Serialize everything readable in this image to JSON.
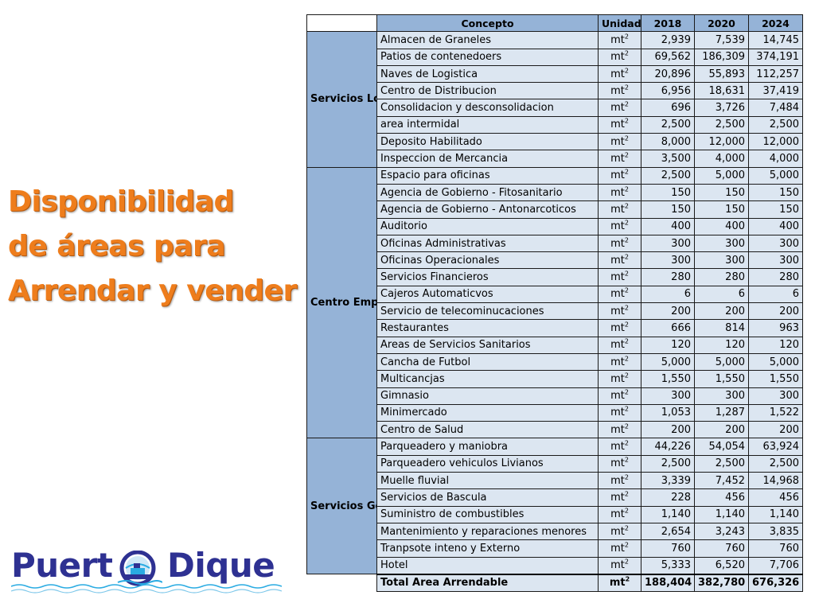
{
  "headline": {
    "line1": "Disponibilidad",
    "line2": "de áreas para",
    "line3": "Arrendar y vender"
  },
  "logo": {
    "word1": "Puert",
    "word2": "Dique",
    "badge_icon": "ship-globe-icon",
    "colors": {
      "text": "#2e3192",
      "accent": "#29abe2"
    }
  },
  "colors": {
    "headline": "#ee7d1c",
    "header_fill": "#95b3d7",
    "cell_fill": "#dce6f1"
  },
  "table": {
    "headers": [
      "",
      "Concepto",
      "Unidad",
      "2018",
      "2020",
      "2024"
    ],
    "unit": "mt",
    "unit_exp": "2",
    "groups": [
      {
        "label": "Servicios Logisticos",
        "rows": [
          {
            "concept": "Almacen de Graneles",
            "y2018": "2,939",
            "y2020": "7,539",
            "y2024": "14,745"
          },
          {
            "concept": "Patios de contenedoers",
            "y2018": "69,562",
            "y2020": "186,309",
            "y2024": "374,191"
          },
          {
            "concept": "Naves de Logistica",
            "y2018": "20,896",
            "y2020": "55,893",
            "y2024": "112,257"
          },
          {
            "concept": "Centro de Distribucion",
            "y2018": "6,956",
            "y2020": "18,631",
            "y2024": "37,419"
          },
          {
            "concept": "Consolidacion y desconsolidacion",
            "y2018": "696",
            "y2020": "3,726",
            "y2024": "7,484"
          },
          {
            "concept": "area intermidal",
            "y2018": "2,500",
            "y2020": "2,500",
            "y2024": "2,500"
          },
          {
            "concept": "Deposito Habilitado",
            "y2018": "8,000",
            "y2020": "12,000",
            "y2024": "12,000"
          },
          {
            "concept": "Inspeccion de Mercancia",
            "y2018": "3,500",
            "y2020": "4,000",
            "y2024": "4,000"
          }
        ]
      },
      {
        "label": "Centro Empresaial",
        "rows": [
          {
            "concept": "Espacio para oficinas",
            "y2018": "2,500",
            "y2020": "5,000",
            "y2024": "5,000"
          },
          {
            "concept": "Agencia de Gobierno - Fitosanitario",
            "y2018": "150",
            "y2020": "150",
            "y2024": "150"
          },
          {
            "concept": "Agencia de Gobierno - Antonarcoticos",
            "y2018": "150",
            "y2020": "150",
            "y2024": "150"
          },
          {
            "concept": "Auditorio",
            "y2018": "400",
            "y2020": "400",
            "y2024": "400"
          },
          {
            "concept": "Oficinas Administrativas",
            "y2018": "300",
            "y2020": "300",
            "y2024": "300"
          },
          {
            "concept": "Oficinas Operacionales",
            "y2018": "300",
            "y2020": "300",
            "y2024": "300"
          },
          {
            "concept": "Servicios Financieros",
            "y2018": "280",
            "y2020": "280",
            "y2024": "280"
          },
          {
            "concept": "Cajeros Automaticvos",
            "y2018": "6",
            "y2020": "6",
            "y2024": "6"
          },
          {
            "concept": "Servicio de telecominucaciones",
            "y2018": "200",
            "y2020": "200",
            "y2024": "200"
          },
          {
            "concept": "Restaurantes",
            "y2018": "666",
            "y2020": "814",
            "y2024": "963"
          },
          {
            "concept": "Areas de Servicios Sanitarios",
            "y2018": "120",
            "y2020": "120",
            "y2024": "120"
          },
          {
            "concept": "Cancha de Futbol",
            "y2018": "5,000",
            "y2020": "5,000",
            "y2024": "5,000"
          },
          {
            "concept": "Multicancjas",
            "y2018": "1,550",
            "y2020": "1,550",
            "y2024": "1,550"
          },
          {
            "concept": "Gimnasio",
            "y2018": "300",
            "y2020": "300",
            "y2024": "300"
          },
          {
            "concept": "Minimercado",
            "y2018": "1,053",
            "y2020": "1,287",
            "y2024": "1,522"
          },
          {
            "concept": "Centro de Salud",
            "y2018": "200",
            "y2020": "200",
            "y2024": "200"
          }
        ]
      },
      {
        "label": "Servicios Generales",
        "rows": [
          {
            "concept": "Parqueadero y maniobra",
            "y2018": "44,226",
            "y2020": "54,054",
            "y2024": "63,924"
          },
          {
            "concept": "Parqueadero vehiculos Livianos",
            "y2018": "2,500",
            "y2020": "2,500",
            "y2024": "2,500"
          },
          {
            "concept": "Muelle fluvial",
            "y2018": "3,339",
            "y2020": "7,452",
            "y2024": "14,968"
          },
          {
            "concept": "Servicios de Bascula",
            "y2018": "228",
            "y2020": "456",
            "y2024": "456"
          },
          {
            "concept": "Suministro de combustibles",
            "y2018": "1,140",
            "y2020": "1,140",
            "y2024": "1,140"
          },
          {
            "concept": "Mantenimiento y reparaciones menores",
            "y2018": "2,654",
            "y2020": "3,243",
            "y2024": "3,835"
          },
          {
            "concept": "Tranpsote inteno y Externo",
            "y2018": "760",
            "y2020": "760",
            "y2024": "760"
          },
          {
            "concept": "Hotel",
            "y2018": "5,333",
            "y2020": "6,520",
            "y2024": "7,706"
          }
        ]
      }
    ],
    "total": {
      "concept": "Total Area Arrendable",
      "y2018": "188,404",
      "y2020": "382,780",
      "y2024": "676,326"
    }
  }
}
